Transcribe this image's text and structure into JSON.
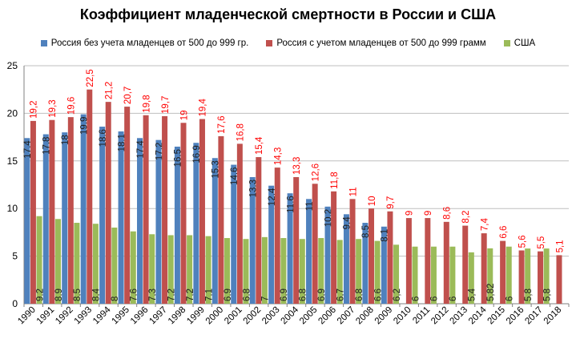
{
  "chart_data": {
    "type": "bar",
    "title": "Коэффициент младенческой смертности в России и США",
    "xlabel": "",
    "ylabel": "",
    "ylim": [
      0,
      25
    ],
    "yticks": [
      "0",
      "5",
      "10",
      "15",
      "20",
      "25"
    ],
    "grid": true,
    "legend_position": "top",
    "categories": [
      "1990",
      "1991",
      "1992",
      "1993",
      "1994",
      "1995",
      "1996",
      "1997",
      "1998",
      "1999",
      "2000",
      "2001",
      "2002",
      "2003",
      "2004",
      "2005",
      "2006",
      "2007",
      "2008",
      "2009",
      "2010",
      "2011",
      "2012",
      "2013",
      "2014",
      "2015",
      "2016",
      "2017",
      "2018"
    ],
    "series": [
      {
        "name": "Россия без учета младенцев от 500 до 999 гр.",
        "color": "#4f81bd",
        "label_color": "#1f1f1f",
        "values": [
          17.4,
          17.8,
          18,
          19.9,
          18.6,
          18.1,
          17.4,
          17.2,
          16.5,
          16.9,
          15.3,
          14.6,
          13.3,
          12.4,
          11.6,
          11,
          10.2,
          9.4,
          8.5,
          8.1,
          null,
          null,
          null,
          null,
          null,
          null,
          null,
          null,
          null
        ],
        "labels": [
          "17,4",
          "17,8",
          "18",
          "19,9",
          "18,6",
          "18,1",
          "17,4",
          "17,2",
          "16,5",
          "16,9",
          "15,3",
          "14,6",
          "13,3",
          "12,4",
          "11,6",
          "11",
          "10,2",
          "9,4",
          "8,5",
          "8,1",
          "",
          "",
          "",
          "",
          "",
          "",
          "",
          "",
          ""
        ]
      },
      {
        "name": "Россия с учетом  младенцев от 500 до 999 грамм",
        "color": "#c0504d",
        "label_color": "#ff0000",
        "values": [
          19.2,
          19.3,
          19.6,
          22.5,
          21.2,
          20.7,
          19.8,
          19.7,
          19,
          19.4,
          17.6,
          16.8,
          15.4,
          14.3,
          13.3,
          12.6,
          11.8,
          11,
          10,
          9.7,
          9,
          9,
          8.6,
          8.2,
          7.4,
          6.6,
          5.6,
          5.5,
          5.1
        ],
        "labels": [
          "19,2",
          "19,3",
          "19,6",
          "22,5",
          "21,2",
          "20,7",
          "19,8",
          "19,7",
          "19",
          "19,4",
          "17,6",
          "16,8",
          "15,4",
          "14,3",
          "13,3",
          "12,6",
          "11,8",
          "11",
          "10",
          "9,7",
          "9",
          "9",
          "8,6",
          "8,2",
          "7,4",
          "6,6",
          "5,6",
          "5,5",
          "5,1"
        ]
      },
      {
        "name": "США",
        "color": "#9bbb59",
        "label_color": "#1f1f1f",
        "values": [
          9.2,
          8.9,
          8.5,
          8.4,
          8,
          7.6,
          7.3,
          7.2,
          7.2,
          7.1,
          6.9,
          6.8,
          7,
          6.9,
          6.8,
          6.9,
          6.7,
          6.8,
          6.6,
          6.2,
          6,
          6,
          6,
          5.4,
          5.82,
          6,
          5.8,
          5.8,
          null
        ],
        "labels": [
          "9,2",
          "8,9",
          "8,5",
          "8,4",
          "8",
          "7,6",
          "7,3",
          "7,2",
          "7,2",
          "7,1",
          "6,9",
          "6,8",
          "7",
          "6,9",
          "6,8",
          "6,9",
          "6,7",
          "6,8",
          "6,6",
          "6,2",
          "6",
          "6",
          "6",
          "5,4",
          "5,82",
          "6",
          "5,8",
          "5,8",
          ""
        ]
      }
    ]
  }
}
